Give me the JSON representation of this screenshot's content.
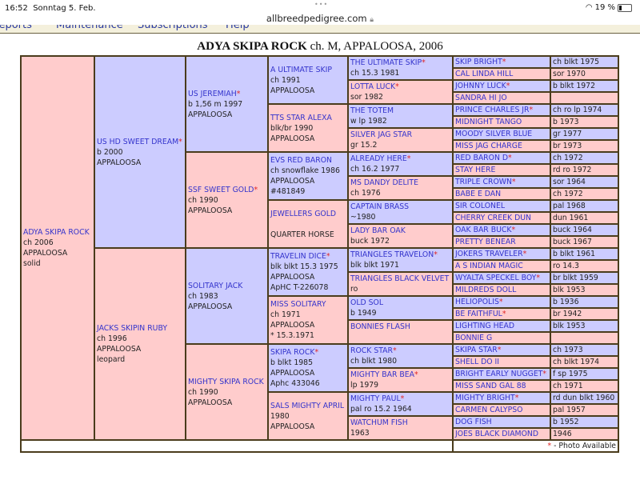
{
  "status_bar": {
    "time": "16:52",
    "date": "Sonntag 5. Feb.",
    "battery": "19 %",
    "battery_level": 0.19
  },
  "browser": {
    "url": "allbreedpedigree.com"
  },
  "nav": [
    "Reports",
    "Maintenance",
    "Subscriptions",
    "Help"
  ],
  "title": {
    "name": "ADYA SKIPA ROCK",
    "details": "ch. M, APPALOOSA, 2006"
  },
  "colors": {
    "sire": "#ccccff",
    "dam": "#ffcccc",
    "link": "#3333cc",
    "star": "#e02020",
    "border": "#4a3c1c"
  },
  "pedigree": {
    "gen1": [
      {
        "name": "ADYA SKIPA ROCK",
        "star": false,
        "lines": [
          "ch 2006",
          "APPALOOSA",
          "solid"
        ]
      }
    ],
    "gen2": [
      {
        "name": "US HD SWEET DREAM",
        "star": true,
        "lines": [
          "b 2000",
          "APPALOOSA"
        ]
      },
      {
        "name": "JACKS SKIPIN RUBY",
        "star": false,
        "lines": [
          "ch 1996",
          "APPALOOSA",
          "leopard"
        ]
      }
    ],
    "gen3": [
      {
        "name": "US JEREMIAH",
        "star": true,
        "lines": [
          "b 1,56 m 1997",
          "APPALOOSA"
        ]
      },
      {
        "name": "SSF SWEET GOLD",
        "star": true,
        "lines": [
          "ch 1990",
          "APPALOOSA"
        ]
      },
      {
        "name": "SOLITARY JACK",
        "star": false,
        "lines": [
          "ch 1983",
          "APPALOOSA"
        ]
      },
      {
        "name": "MIGHTY SKIPA ROCK",
        "star": false,
        "lines": [
          "ch 1990",
          "APPALOOSA"
        ]
      }
    ],
    "gen4": [
      {
        "name": "A ULTIMATE SKIP",
        "star": false,
        "lines": [
          "ch 1991",
          "APPALOOSA"
        ]
      },
      {
        "name": "TTS STAR ALEXA",
        "star": false,
        "lines": [
          "blk/br 1990",
          "APPALOOSA"
        ]
      },
      {
        "name": "EVS RED BARON",
        "star": false,
        "lines": [
          "ch snowflake 1986",
          "APPALOOSA",
          "#481849"
        ]
      },
      {
        "name": "JEWELLERS GOLD",
        "star": false,
        "lines": [
          "",
          "QUARTER HORSE"
        ]
      },
      {
        "name": "TRAVELIN DICE",
        "star": true,
        "lines": [
          "blk blkt 15.3 1975",
          "APPALOOSA",
          "ApHC T-226078"
        ]
      },
      {
        "name": "MISS SOLITARY",
        "star": false,
        "lines": [
          "ch 1971",
          "APPALOOSA",
          "* 15.3.1971"
        ]
      },
      {
        "name": "SKIPA ROCK",
        "star": true,
        "lines": [
          "b blkt 1985",
          "APPALOOSA",
          "Aphc 433046"
        ]
      },
      {
        "name": "SALS MIGHTY APRIL",
        "star": false,
        "lines": [
          "1980",
          "APPALOOSA"
        ]
      }
    ],
    "gen5": [
      {
        "name": "THE ULTIMATE SKIP",
        "star": true,
        "lines": [
          "ch 15.3 1981"
        ]
      },
      {
        "name": "LOTTA LUCK",
        "star": true,
        "lines": [
          "sor 1982"
        ]
      },
      {
        "name": "THE TOTEM",
        "star": false,
        "lines": [
          "w lp 1982"
        ]
      },
      {
        "name": "SILVER JAG STAR",
        "star": false,
        "lines": [
          "gr 15.2"
        ]
      },
      {
        "name": "ALREADY HERE",
        "star": true,
        "lines": [
          "ch 16.2 1977"
        ]
      },
      {
        "name": "MS DANDY DELITE",
        "star": false,
        "lines": [
          "ch 1976"
        ]
      },
      {
        "name": "CAPTAIN BRASS",
        "star": false,
        "lines": [
          "~1980"
        ]
      },
      {
        "name": "LADY BAR OAK",
        "star": false,
        "lines": [
          "buck 1972"
        ]
      },
      {
        "name": "TRIANGLES TRAVELON",
        "star": true,
        "lines": [
          "blk blkt 1971"
        ]
      },
      {
        "name": "TRIANGLES BLACK VELVET",
        "star": false,
        "lines": [
          "ro"
        ]
      },
      {
        "name": "OLD SOL",
        "star": false,
        "lines": [
          "b 1949"
        ]
      },
      {
        "name": "BONNIES FLASH",
        "star": false,
        "lines": [
          ""
        ]
      },
      {
        "name": "ROCK STAR",
        "star": true,
        "lines": [
          "ch blkt 1980"
        ]
      },
      {
        "name": "MIGHTY BAR BEA",
        "star": true,
        "lines": [
          "lp 1979"
        ]
      },
      {
        "name": "MIGHTY PAUL",
        "star": true,
        "lines": [
          "pal ro 15.2 1964"
        ]
      },
      {
        "name": "WATCHUM FISH",
        "star": false,
        "lines": [
          "1963"
        ]
      }
    ],
    "gen6": [
      {
        "name": "SKIP BRIGHT",
        "star": true,
        "detail": "ch blkt 1975"
      },
      {
        "name": "CAL LINDA HILL",
        "star": false,
        "detail": "sor 1970"
      },
      {
        "name": "JOHNNY LUCK",
        "star": true,
        "detail": "b blkt 1972"
      },
      {
        "name": "SANDRA HI JO",
        "star": false,
        "detail": ""
      },
      {
        "name": "PRINCE CHARLES JR",
        "star": true,
        "detail": "ch ro lp 1974"
      },
      {
        "name": "MIDNIGHT TANGO",
        "star": false,
        "detail": "b 1973"
      },
      {
        "name": "MOODY SILVER BLUE",
        "star": false,
        "detail": "gr 1977"
      },
      {
        "name": "MISS JAG CHARGE",
        "star": false,
        "detail": "br 1973"
      },
      {
        "name": "RED BARON D",
        "star": true,
        "detail": "ch 1972"
      },
      {
        "name": "STAY HERE",
        "star": false,
        "detail": "rd ro 1972"
      },
      {
        "name": "TRIPLE CROWN",
        "star": true,
        "detail": "sor 1964"
      },
      {
        "name": "BABE E DAN",
        "star": false,
        "detail": "ch 1972"
      },
      {
        "name": "SIR COLONEL",
        "star": false,
        "detail": "pal 1968"
      },
      {
        "name": "CHERRY CREEK DUN",
        "star": false,
        "detail": "dun 1961"
      },
      {
        "name": "OAK BAR BUCK",
        "star": true,
        "detail": "buck 1964"
      },
      {
        "name": "PRETTY BENEAR",
        "star": false,
        "detail": "buck 1967"
      },
      {
        "name": "JOKERS TRAVELER",
        "star": true,
        "detail": "b blkt 1961"
      },
      {
        "name": "A S INDIAN MAGIC",
        "star": false,
        "detail": "ro 14.3"
      },
      {
        "name": "WYALTA SPECKEL BOY",
        "star": true,
        "detail": "br blkt 1959"
      },
      {
        "name": "MILDREDS DOLL",
        "star": false,
        "detail": "blk 1953"
      },
      {
        "name": "HELIOPOLIS",
        "star": true,
        "detail": "b 1936"
      },
      {
        "name": "BE FAITHFUL",
        "star": true,
        "detail": "br 1942"
      },
      {
        "name": "LIGHTING HEAD",
        "star": false,
        "detail": "blk 1953"
      },
      {
        "name": "BONNIE G",
        "star": false,
        "detail": ""
      },
      {
        "name": "SKIPA STAR",
        "star": true,
        "detail": "ch 1973"
      },
      {
        "name": "SHELL DO II",
        "star": false,
        "detail": "ch blkt 1974"
      },
      {
        "name": "BRIGHT EARLY NUGGET",
        "star": true,
        "detail": "f sp 1975"
      },
      {
        "name": "MISS SAND GAL 88",
        "star": false,
        "detail": "ch 1971"
      },
      {
        "name": "MIGHTY BRIGHT",
        "star": true,
        "detail": "rd dun blkt 1960"
      },
      {
        "name": "CARMEN CALYPSO",
        "star": false,
        "detail": "pal 1957"
      },
      {
        "name": "DOG FISH",
        "star": false,
        "detail": "b 1952"
      },
      {
        "name": "JOES BLACK DIAMOND",
        "star": false,
        "detail": "1946"
      }
    ]
  },
  "footer": {
    "star": "*",
    "legend": " - Photo Available"
  }
}
